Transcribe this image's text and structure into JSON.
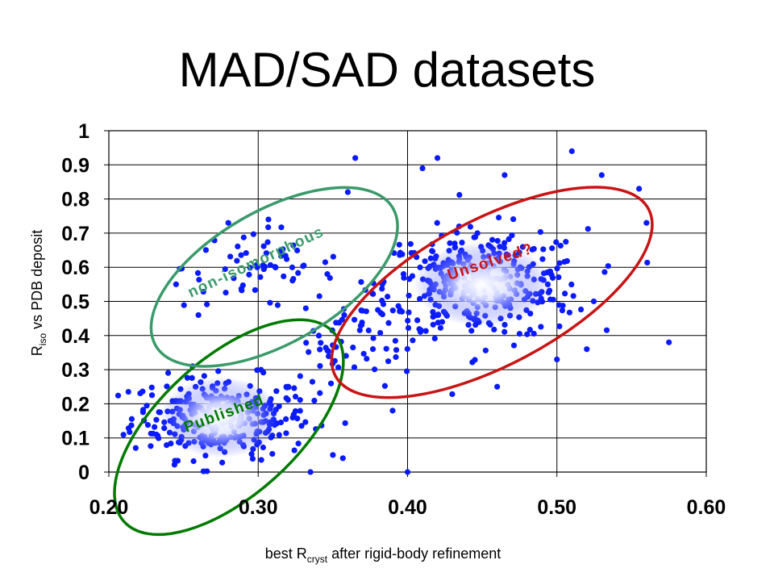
{
  "slide": {
    "title": "MAD/SAD datasets"
  },
  "chart_data": {
    "type": "scatter",
    "title": "MAD/SAD datasets",
    "xlabel": {
      "main": "best R",
      "sub": "cryst",
      "tail": " after rigid-body refinement"
    },
    "ylabel": {
      "main": "R",
      "sub": "iso",
      "tail": " vs PDB deposit"
    },
    "xlim": [
      0.2,
      0.6
    ],
    "ylim": [
      0,
      1
    ],
    "x_ticks": [
      "0.20",
      "0.30",
      "0.40",
      "0.50",
      "0.60"
    ],
    "y_ticks": [
      "0",
      "0.1",
      "0.2",
      "0.3",
      "0.4",
      "0.5",
      "0.6",
      "0.7",
      "0.8",
      "0.9",
      "1"
    ],
    "grid": true,
    "marker_color": "#0a1aff",
    "clusters": [
      {
        "label": "Published",
        "color": "#007a00",
        "center": [
          0.275,
          0.16
        ],
        "spread": [
          0.03,
          0.06
        ],
        "count": 300
      },
      {
        "label": "non-isomorphous",
        "color": "#3a9a6a",
        "center": [
          0.3,
          0.6
        ],
        "spread": [
          0.025,
          0.06
        ],
        "count": 60
      },
      {
        "label": "Unsolved?",
        "color": "#c81414",
        "center": [
          0.45,
          0.55
        ],
        "spread": [
          0.035,
          0.08
        ],
        "count": 330
      }
    ],
    "outliers": [
      [
        0.365,
        0.92
      ],
      [
        0.41,
        0.89
      ],
      [
        0.42,
        0.92
      ],
      [
        0.51,
        0.94
      ],
      [
        0.575,
        0.38
      ],
      [
        0.335,
        0.0
      ],
      [
        0.4,
        0.0
      ],
      [
        0.39,
        0.18
      ],
      [
        0.46,
        0.25
      ],
      [
        0.52,
        0.36
      ],
      [
        0.5,
        0.33
      ],
      [
        0.465,
        0.87
      ],
      [
        0.53,
        0.87
      ],
      [
        0.555,
        0.83
      ],
      [
        0.56,
        0.73
      ],
      [
        0.28,
        0.73
      ],
      [
        0.35,
        0.05
      ],
      [
        0.245,
        0.55
      ],
      [
        0.26,
        0.46
      ],
      [
        0.36,
        0.82
      ]
    ],
    "annotations": [
      {
        "text": "Published",
        "color": "#007a00"
      },
      {
        "text": "non-isomorphous",
        "color": "#3a9a6a"
      },
      {
        "text": "Unsolved?",
        "color": "#c81414"
      }
    ]
  }
}
